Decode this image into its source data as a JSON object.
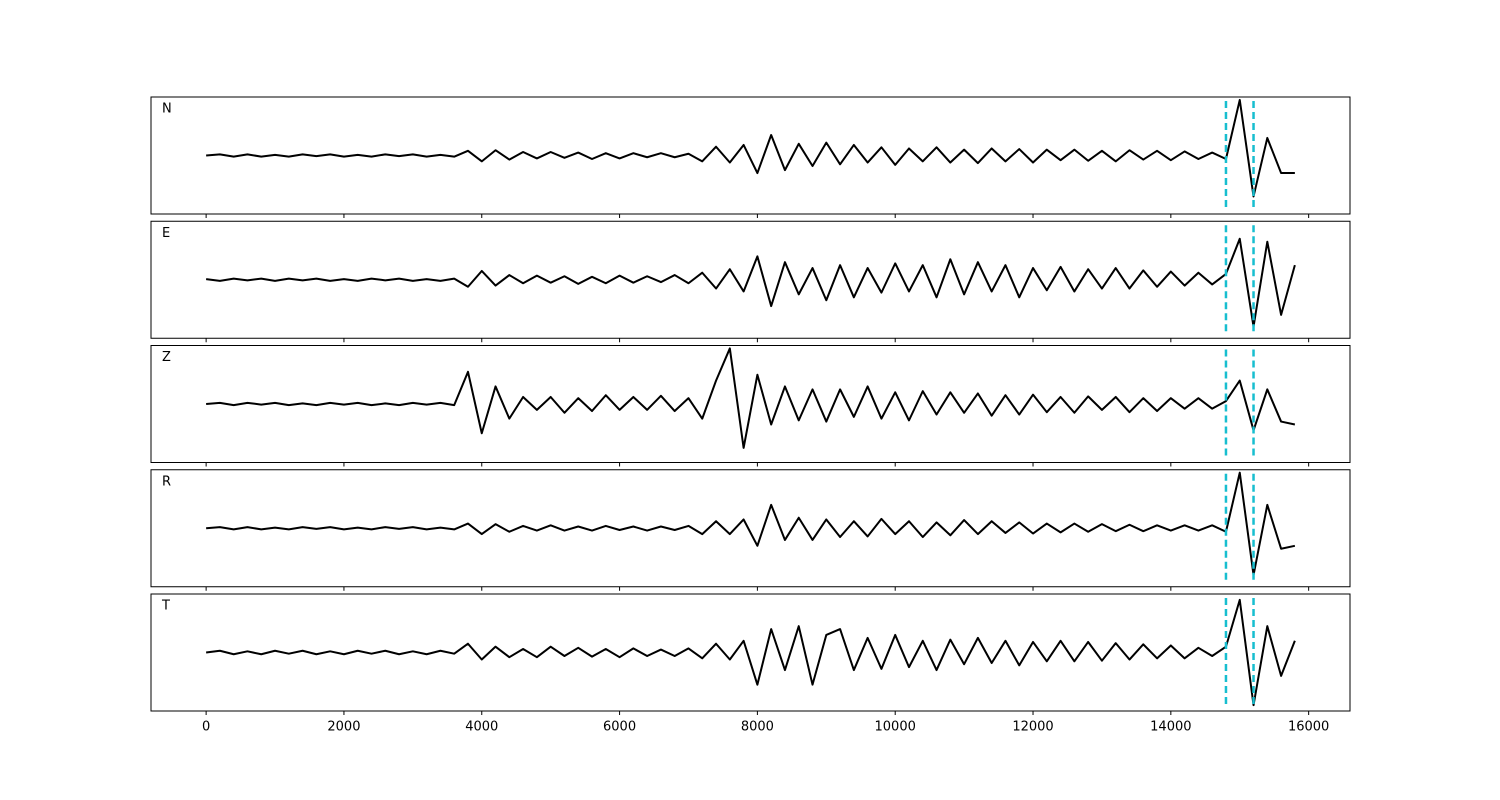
{
  "chart_data": [
    {
      "type": "line",
      "label": "N",
      "color": "#000000",
      "vline_color": "#17becf",
      "x": [
        0,
        200,
        400,
        600,
        800,
        1000,
        1200,
        1400,
        1600,
        1800,
        2000,
        2200,
        2400,
        2600,
        2800,
        3000,
        3200,
        3400,
        3600,
        3800,
        4000,
        4200,
        4400,
        4600,
        4800,
        5000,
        5200,
        5400,
        5600,
        5800,
        6000,
        6200,
        6400,
        6600,
        6800,
        7000,
        7200,
        7400,
        7600,
        7800,
        8000,
        8200,
        8400,
        8600,
        8800,
        9000,
        9200,
        9400,
        9600,
        9800,
        10000,
        10200,
        10400,
        10600,
        10800,
        11000,
        11200,
        11400,
        11600,
        11800,
        12000,
        12200,
        12400,
        12600,
        12800,
        13000,
        13200,
        13400,
        13600,
        13800,
        14000,
        14200,
        14400,
        14600,
        14800,
        15000,
        15200,
        15400,
        15600,
        15800
      ],
      "values": [
        0,
        0.02,
        -0.02,
        0.02,
        -0.02,
        0.01,
        -0.02,
        0.02,
        -0.01,
        0.02,
        -0.02,
        0.01,
        -0.02,
        0.02,
        -0.01,
        0.02,
        -0.02,
        0.01,
        -0.02,
        0.08,
        -0.1,
        0.09,
        -0.07,
        0.06,
        -0.05,
        0.06,
        -0.04,
        0.05,
        -0.06,
        0.04,
        -0.05,
        0.04,
        -0.03,
        0.04,
        -0.03,
        0.03,
        -0.1,
        0.15,
        -0.12,
        0.18,
        -0.3,
        0.35,
        -0.25,
        0.2,
        -0.18,
        0.22,
        -0.15,
        0.18,
        -0.12,
        0.14,
        -0.16,
        0.12,
        -0.1,
        0.14,
        -0.12,
        0.1,
        -0.13,
        0.12,
        -0.1,
        0.11,
        -0.12,
        0.1,
        -0.08,
        0.1,
        -0.09,
        0.08,
        -0.1,
        0.09,
        -0.07,
        0.08,
        -0.08,
        0.07,
        -0.06,
        0.05,
        -0.06,
        0.95,
        -0.7,
        0.3,
        -0.3,
        -0.3
      ],
      "xlim": [
        -800,
        16600
      ],
      "ylim": [
        -1,
        1
      ],
      "xticks": [
        0,
        2000,
        4000,
        6000,
        8000,
        10000,
        12000,
        14000,
        16000
      ],
      "vlines": [
        14800,
        15200
      ]
    },
    {
      "type": "line",
      "label": "E",
      "color": "#000000",
      "vline_color": "#17becf",
      "x": [
        0,
        200,
        400,
        600,
        800,
        1000,
        1200,
        1400,
        1600,
        1800,
        2000,
        2200,
        2400,
        2600,
        2800,
        3000,
        3200,
        3400,
        3600,
        3800,
        4000,
        4200,
        4400,
        4600,
        4800,
        5000,
        5200,
        5400,
        5600,
        5800,
        6000,
        6200,
        6400,
        6600,
        6800,
        7000,
        7200,
        7400,
        7600,
        7800,
        8000,
        8200,
        8400,
        8600,
        8800,
        9000,
        9200,
        9400,
        9600,
        9800,
        10000,
        10200,
        10400,
        10600,
        10800,
        11000,
        11200,
        11400,
        11600,
        11800,
        12000,
        12200,
        12400,
        12600,
        12800,
        13000,
        13200,
        13400,
        13600,
        13800,
        14000,
        14200,
        14400,
        14600,
        14800,
        15000,
        15200,
        15400,
        15600,
        15800
      ],
      "values": [
        0.01,
        -0.02,
        0.02,
        -0.01,
        0.02,
        -0.02,
        0.02,
        -0.01,
        0.02,
        -0.02,
        0.01,
        -0.02,
        0.02,
        -0.01,
        0.02,
        -0.02,
        0.01,
        -0.02,
        0.02,
        -0.12,
        0.15,
        -0.1,
        0.08,
        -0.06,
        0.07,
        -0.05,
        0.06,
        -0.07,
        0.05,
        -0.06,
        0.07,
        -0.05,
        0.06,
        -0.04,
        0.08,
        -0.06,
        0.12,
        -0.15,
        0.18,
        -0.2,
        0.4,
        -0.45,
        0.3,
        -0.25,
        0.2,
        -0.35,
        0.25,
        -0.3,
        0.2,
        -0.22,
        0.28,
        -0.2,
        0.25,
        -0.3,
        0.35,
        -0.25,
        0.3,
        -0.2,
        0.25,
        -0.3,
        0.2,
        -0.18,
        0.22,
        -0.2,
        0.18,
        -0.15,
        0.2,
        -0.15,
        0.16,
        -0.12,
        0.14,
        -0.1,
        0.12,
        -0.08,
        0.1,
        0.7,
        -0.8,
        0.65,
        -0.6,
        0.25
      ],
      "xlim": [
        -800,
        16600
      ],
      "ylim": [
        -1,
        1
      ],
      "xticks": [
        0,
        2000,
        4000,
        6000,
        8000,
        10000,
        12000,
        14000,
        16000
      ],
      "vlines": [
        14800,
        15200
      ]
    },
    {
      "type": "line",
      "label": "Z",
      "color": "#000000",
      "vline_color": "#17becf",
      "x": [
        0,
        200,
        400,
        600,
        800,
        1000,
        1200,
        1400,
        1600,
        1800,
        2000,
        2200,
        2400,
        2600,
        2800,
        3000,
        3200,
        3400,
        3600,
        3800,
        4000,
        4200,
        4400,
        4600,
        4800,
        5000,
        5200,
        5400,
        5600,
        5800,
        6000,
        6200,
        6400,
        6600,
        6800,
        7000,
        7200,
        7400,
        7600,
        7800,
        8000,
        8200,
        8400,
        8600,
        8800,
        9000,
        9200,
        9400,
        9600,
        9800,
        10000,
        10200,
        10400,
        10600,
        10800,
        11000,
        11200,
        11400,
        11600,
        11800,
        12000,
        12200,
        12400,
        12600,
        12800,
        13000,
        13200,
        13400,
        13600,
        13800,
        14000,
        14200,
        14400,
        14600,
        14800,
        15000,
        15200,
        15400,
        15600,
        15800
      ],
      "values": [
        0,
        0.02,
        -0.02,
        0.02,
        -0.01,
        0.02,
        -0.02,
        0.01,
        -0.02,
        0.02,
        -0.01,
        0.02,
        -0.02,
        0.01,
        -0.02,
        0.02,
        -0.01,
        0.02,
        -0.02,
        0.55,
        -0.5,
        0.3,
        -0.25,
        0.12,
        -0.1,
        0.12,
        -0.15,
        0.1,
        -0.12,
        0.15,
        -0.1,
        0.12,
        -0.1,
        0.14,
        -0.12,
        0.1,
        -0.25,
        0.4,
        0.95,
        -0.75,
        0.5,
        -0.35,
        0.3,
        -0.28,
        0.25,
        -0.3,
        0.25,
        -0.22,
        0.3,
        -0.25,
        0.2,
        -0.28,
        0.22,
        -0.18,
        0.2,
        -0.15,
        0.18,
        -0.2,
        0.15,
        -0.18,
        0.16,
        -0.14,
        0.12,
        -0.15,
        0.13,
        -0.1,
        0.12,
        -0.14,
        0.1,
        -0.12,
        0.1,
        -0.08,
        0.1,
        -0.08,
        0.05,
        0.4,
        -0.45,
        0.25,
        -0.3,
        -0.35
      ],
      "xlim": [
        -800,
        16600
      ],
      "ylim": [
        -1,
        1
      ],
      "xticks": [
        0,
        2000,
        4000,
        6000,
        8000,
        10000,
        12000,
        14000,
        16000
      ],
      "vlines": [
        14800,
        15200
      ]
    },
    {
      "type": "line",
      "label": "R",
      "color": "#000000",
      "vline_color": "#17becf",
      "x": [
        0,
        200,
        400,
        600,
        800,
        1000,
        1200,
        1400,
        1600,
        1800,
        2000,
        2200,
        2400,
        2600,
        2800,
        3000,
        3200,
        3400,
        3600,
        3800,
        4000,
        4200,
        4400,
        4600,
        4800,
        5000,
        5200,
        5400,
        5600,
        5800,
        6000,
        6200,
        6400,
        6600,
        6800,
        7000,
        7200,
        7400,
        7600,
        7800,
        8000,
        8200,
        8400,
        8600,
        8800,
        9000,
        9200,
        9400,
        9600,
        9800,
        10000,
        10200,
        10400,
        10600,
        10800,
        11000,
        11200,
        11400,
        11600,
        11800,
        12000,
        12200,
        12400,
        12600,
        12800,
        13000,
        13200,
        13400,
        13600,
        13800,
        14000,
        14200,
        14400,
        14600,
        14800,
        15000,
        15200,
        15400,
        15600,
        15800
      ],
      "values": [
        0,
        0.02,
        -0.02,
        0.02,
        -0.02,
        0.01,
        -0.02,
        0.02,
        -0.01,
        0.02,
        -0.02,
        0.01,
        -0.02,
        0.02,
        -0.01,
        0.02,
        -0.02,
        0.01,
        -0.02,
        0.08,
        -0.1,
        0.07,
        -0.06,
        0.04,
        -0.04,
        0.05,
        -0.04,
        0.03,
        -0.04,
        0.04,
        -0.03,
        0.03,
        -0.04,
        0.03,
        -0.03,
        0.04,
        -0.1,
        0.12,
        -0.1,
        0.15,
        -0.3,
        0.4,
        -0.2,
        0.18,
        -0.2,
        0.15,
        -0.15,
        0.12,
        -0.14,
        0.16,
        -0.1,
        0.12,
        -0.15,
        0.1,
        -0.12,
        0.14,
        -0.1,
        0.12,
        -0.08,
        0.1,
        -0.09,
        0.08,
        -0.07,
        0.08,
        -0.06,
        0.07,
        -0.05,
        0.06,
        -0.05,
        0.05,
        -0.04,
        0.05,
        -0.04,
        0.05,
        -0.06,
        0.95,
        -0.8,
        0.4,
        -0.35,
        -0.3
      ],
      "xlim": [
        -800,
        16600
      ],
      "ylim": [
        -1,
        1
      ],
      "xticks": [
        0,
        2000,
        4000,
        6000,
        8000,
        10000,
        12000,
        14000,
        16000
      ],
      "vlines": [
        14800,
        15200
      ]
    },
    {
      "type": "line",
      "label": "T",
      "color": "#000000",
      "vline_color": "#17becf",
      "x": [
        0,
        200,
        400,
        600,
        800,
        1000,
        1200,
        1400,
        1600,
        1800,
        2000,
        2200,
        2400,
        2600,
        2800,
        3000,
        3200,
        3400,
        3600,
        3800,
        4000,
        4200,
        4400,
        4600,
        4800,
        5000,
        5200,
        5400,
        5600,
        5800,
        6000,
        6200,
        6400,
        6600,
        6800,
        7000,
        7200,
        7400,
        7600,
        7800,
        8000,
        8200,
        8400,
        8600,
        8800,
        9000,
        9200,
        9400,
        9600,
        9800,
        10000,
        10200,
        10400,
        10600,
        10800,
        11000,
        11200,
        11400,
        11600,
        11800,
        12000,
        12200,
        12400,
        12600,
        12800,
        13000,
        13200,
        13400,
        13600,
        13800,
        14000,
        14200,
        14400,
        14600,
        14800,
        15000,
        15200,
        15400,
        15600,
        15800
      ],
      "values": [
        0,
        0.03,
        -0.03,
        0.02,
        -0.03,
        0.03,
        -0.02,
        0.03,
        -0.03,
        0.02,
        -0.03,
        0.03,
        -0.02,
        0.03,
        -0.03,
        0.02,
        -0.03,
        0.03,
        -0.02,
        0.15,
        -0.12,
        0.1,
        -0.08,
        0.06,
        -0.08,
        0.1,
        -0.06,
        0.08,
        -0.07,
        0.06,
        -0.08,
        0.07,
        -0.06,
        0.05,
        -0.06,
        0.07,
        -0.1,
        0.15,
        -0.12,
        0.2,
        -0.55,
        0.4,
        -0.3,
        0.45,
        -0.55,
        0.3,
        0.4,
        -0.3,
        0.25,
        -0.28,
        0.3,
        -0.25,
        0.2,
        -0.3,
        0.22,
        -0.2,
        0.25,
        -0.18,
        0.2,
        -0.22,
        0.18,
        -0.15,
        0.2,
        -0.15,
        0.18,
        -0.14,
        0.16,
        -0.12,
        0.14,
        -0.1,
        0.12,
        -0.1,
        0.08,
        -0.06,
        0.1,
        0.9,
        -0.9,
        0.45,
        -0.4,
        0.2
      ],
      "xlim": [
        -800,
        16600
      ],
      "ylim": [
        -1,
        1
      ],
      "xticks": [
        0,
        2000,
        4000,
        6000,
        8000,
        10000,
        12000,
        14000,
        16000
      ],
      "vlines": [
        14800,
        15200
      ]
    }
  ]
}
